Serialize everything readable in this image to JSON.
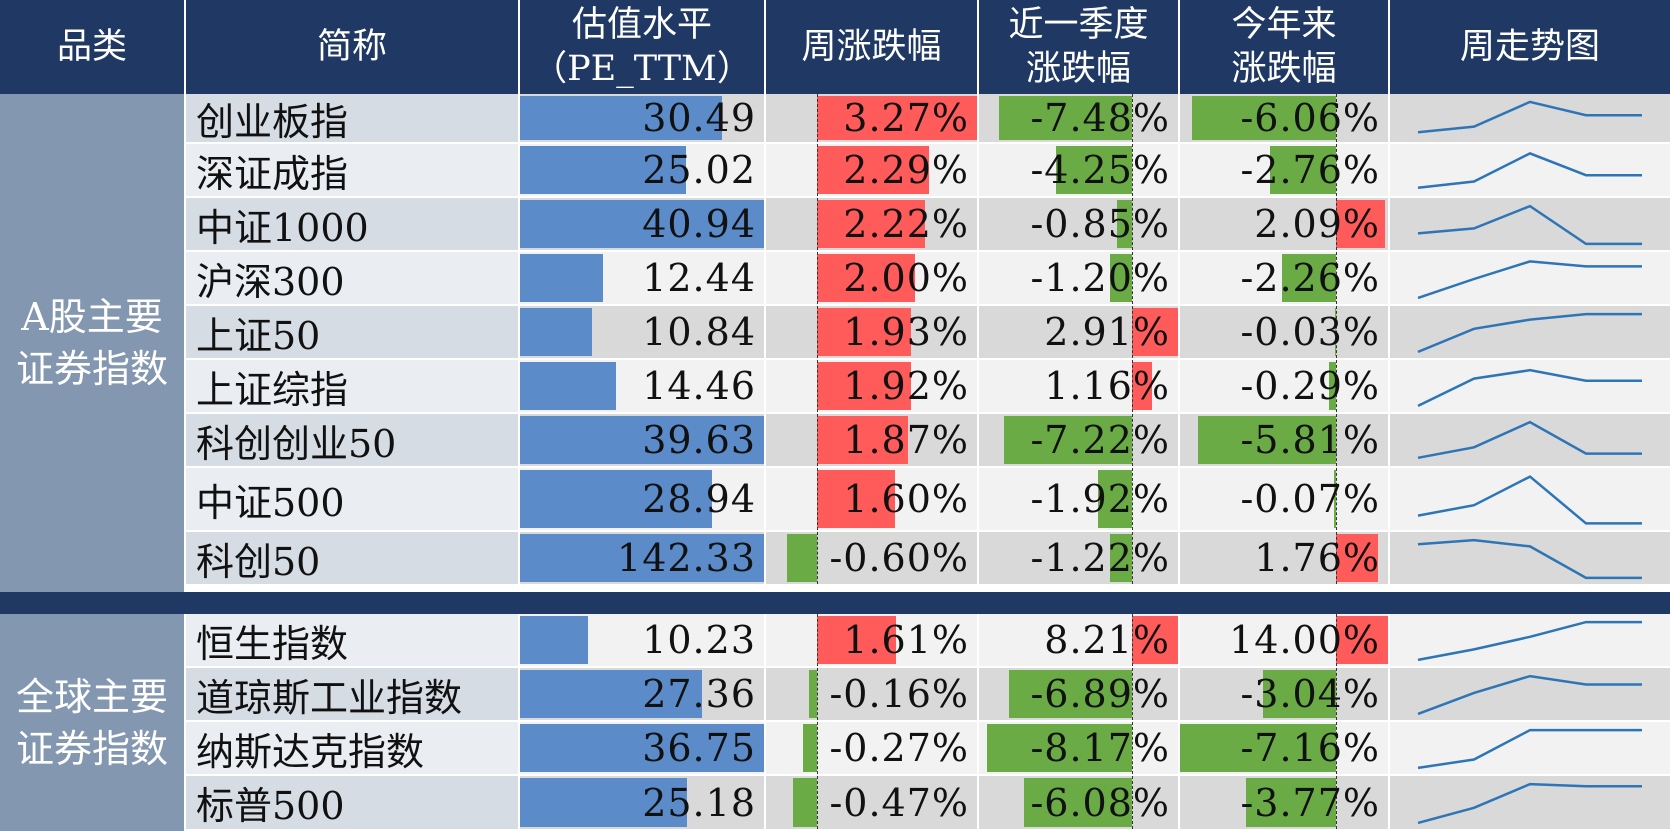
{
  "headers": {
    "category": "品类",
    "name": "简称",
    "pe_line1": "估值水平",
    "pe_line2": "（PE_TTM）",
    "week": "周涨跌幅",
    "quarter_line1": "近一季度",
    "quarter_line2": "涨跌幅",
    "ytd_line1": "今年来",
    "ytd_line2": "涨跌幅",
    "trend": "周走势图"
  },
  "groups": [
    {
      "label_line1": "A股主要",
      "label_line2": "证券指数"
    },
    {
      "label_line1": "全球主要",
      "label_line2": "证券指数"
    }
  ],
  "colors": {
    "header": "#1f3864",
    "category": "#8497b0",
    "pe_bar": "#5b8bc9",
    "positive": "#ff5b5b",
    "negative": "#6aab46",
    "trend_line": "#2e75b6",
    "row_a": "#f2f2f2",
    "row_b": "#d9d9d9",
    "name_a": "#d6dce4",
    "name_b": "#eaeef3"
  },
  "chart_data": {
    "type": "table",
    "columns": [
      "简称",
      "估值水平（PE_TTM）",
      "周涨跌幅",
      "近一季度涨跌幅",
      "今年来涨跌幅",
      "周走势图"
    ],
    "rows": [
      {
        "group": 0,
        "name": "创业板指",
        "pe": 30.49,
        "pe_text": "30.49",
        "week": 3.27,
        "week_text": "3.27%",
        "quarter": -7.48,
        "quarter_text": "-7.48%",
        "ytd": -6.06,
        "ytd_text": "-6.06%",
        "trend": [
          0.15,
          0.3,
          0.95,
          0.6,
          0.6
        ]
      },
      {
        "group": 0,
        "name": "深证成指",
        "pe": 25.02,
        "pe_text": "25.02",
        "week": 2.29,
        "week_text": "2.29%",
        "quarter": -4.25,
        "quarter_text": "-4.25%",
        "ytd": -2.76,
        "ytd_text": "-2.76%",
        "trend": [
          0.1,
          0.25,
          0.92,
          0.4,
          0.4
        ]
      },
      {
        "group": 0,
        "name": "中证1000",
        "pe": 40.94,
        "pe_text": "40.94",
        "week": 2.22,
        "week_text": "2.22%",
        "quarter": -0.85,
        "quarter_text": "-0.85%",
        "ytd": 2.09,
        "ytd_text": "2.09%",
        "trend": [
          0.3,
          0.42,
          0.95,
          0.05,
          0.05
        ]
      },
      {
        "group": 0,
        "name": "沪深300",
        "pe": 12.44,
        "pe_text": "12.44",
        "week": 2.0,
        "week_text": "2.00%",
        "quarter": -1.2,
        "quarter_text": "-1.20%",
        "ytd": -2.26,
        "ytd_text": "-2.26%",
        "trend": [
          0.05,
          0.5,
          0.92,
          0.8,
          0.8
        ]
      },
      {
        "group": 0,
        "name": "上证50",
        "pe": 10.84,
        "pe_text": "10.84",
        "week": 1.93,
        "week_text": "1.93%",
        "quarter": 2.91,
        "quarter_text": "2.91%",
        "ytd": -0.03,
        "ytd_text": "-0.03%",
        "trend": [
          0.05,
          0.6,
          0.82,
          0.95,
          0.95
        ]
      },
      {
        "group": 0,
        "name": "上证综指",
        "pe": 14.46,
        "pe_text": "14.46",
        "week": 1.92,
        "week_text": "1.92%",
        "quarter": 1.16,
        "quarter_text": "1.16%",
        "ytd": -0.29,
        "ytd_text": "-0.29%",
        "trend": [
          0.05,
          0.7,
          0.9,
          0.65,
          0.65
        ]
      },
      {
        "group": 0,
        "name": "科创创业50",
        "pe": 39.63,
        "pe_text": "39.63",
        "week": 1.87,
        "week_text": "1.87%",
        "quarter": -7.22,
        "quarter_text": "-7.22%",
        "ytd": -5.81,
        "ytd_text": "-5.81%",
        "trend": [
          0.1,
          0.35,
          0.95,
          0.2,
          0.2
        ]
      },
      {
        "group": 0,
        "name": "中证500",
        "pe": 28.94,
        "pe_text": "28.94",
        "week": 1.6,
        "week_text": "1.60%",
        "quarter": -1.92,
        "quarter_text": "-1.92%",
        "ytd": -0.07,
        "ytd_text": "-0.07%",
        "trend": [
          0.2,
          0.4,
          0.95,
          0.05,
          0.05
        ]
      },
      {
        "group": 0,
        "name": "科创50",
        "pe": 142.33,
        "pe_text": "142.33",
        "week": -0.6,
        "week_text": "-0.60%",
        "quarter": -1.22,
        "quarter_text": "-1.22%",
        "ytd": 1.76,
        "ytd_text": "1.76%",
        "trend": [
          0.85,
          0.95,
          0.8,
          0.05,
          0.05
        ]
      },
      {
        "group": 1,
        "name": "恒生指数",
        "pe": 10.23,
        "pe_text": "10.23",
        "week": 1.61,
        "week_text": "1.61%",
        "quarter": 8.21,
        "quarter_text": "8.21%",
        "ytd": 14.0,
        "ytd_text": "14.00%",
        "trend": [
          0.05,
          0.3,
          0.6,
          0.95,
          0.95
        ]
      },
      {
        "group": 1,
        "name": "道琼斯工业指数",
        "pe": 27.36,
        "pe_text": "27.36",
        "week": -0.16,
        "week_text": "-0.16%",
        "quarter": -6.89,
        "quarter_text": "-6.89%",
        "ytd": -3.04,
        "ytd_text": "-3.04%",
        "trend": [
          0.05,
          0.55,
          0.95,
          0.75,
          0.75
        ]
      },
      {
        "group": 1,
        "name": "纳斯达克指数",
        "pe": 36.75,
        "pe_text": "36.75",
        "week": -0.27,
        "week_text": "-0.27%",
        "quarter": -8.17,
        "quarter_text": "-8.17%",
        "ytd": -7.16,
        "ytd_text": "-7.16%",
        "trend": [
          0.05,
          0.25,
          0.95,
          0.95,
          0.95
        ]
      },
      {
        "group": 1,
        "name": "标普500",
        "pe": 25.18,
        "pe_text": "25.18",
        "week": -0.47,
        "week_text": "-0.47%",
        "quarter": -6.08,
        "quarter_text": "-6.08%",
        "ytd": -3.77,
        "ytd_text": "-3.77%",
        "trend": [
          0.05,
          0.4,
          0.95,
          0.9,
          0.9
        ]
      }
    ]
  }
}
